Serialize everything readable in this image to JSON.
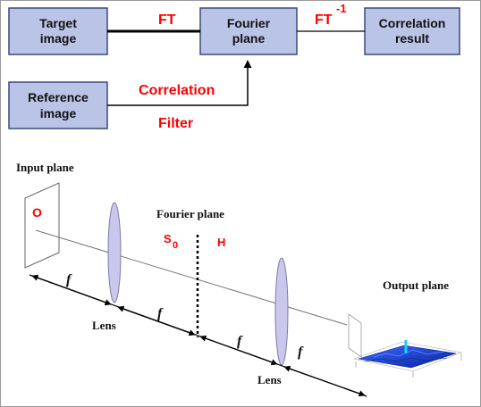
{
  "block_diagram": {
    "target_box": [
      "Target",
      "image"
    ],
    "fourier_box": [
      "Fourier",
      "plane"
    ],
    "correlation_box": [
      "Correlation",
      "result"
    ],
    "reference_box": [
      "Reference",
      "image"
    ],
    "ft_label": "FT",
    "ift_label": "FT",
    "ift_superscript": "-1",
    "correlation_filter": [
      "Correlation",
      "Filter"
    ]
  },
  "optical_setup": {
    "input_plane": "Input plane",
    "object_symbol": "O",
    "fourier_plane": "Fourier plane",
    "spectrum_symbol": "S",
    "spectrum_subscript": "0",
    "filter_symbol": "H",
    "lens_label": "Lens",
    "focal_symbol": "f",
    "output_plane": "Output plane"
  },
  "colors": {
    "box_fill": "#b9c4e6",
    "box_border": "#3d4a7a",
    "accent_red": "#ff0000",
    "lens_fill": "#c9c8ec",
    "surface_blue": "#1a3fd6"
  }
}
